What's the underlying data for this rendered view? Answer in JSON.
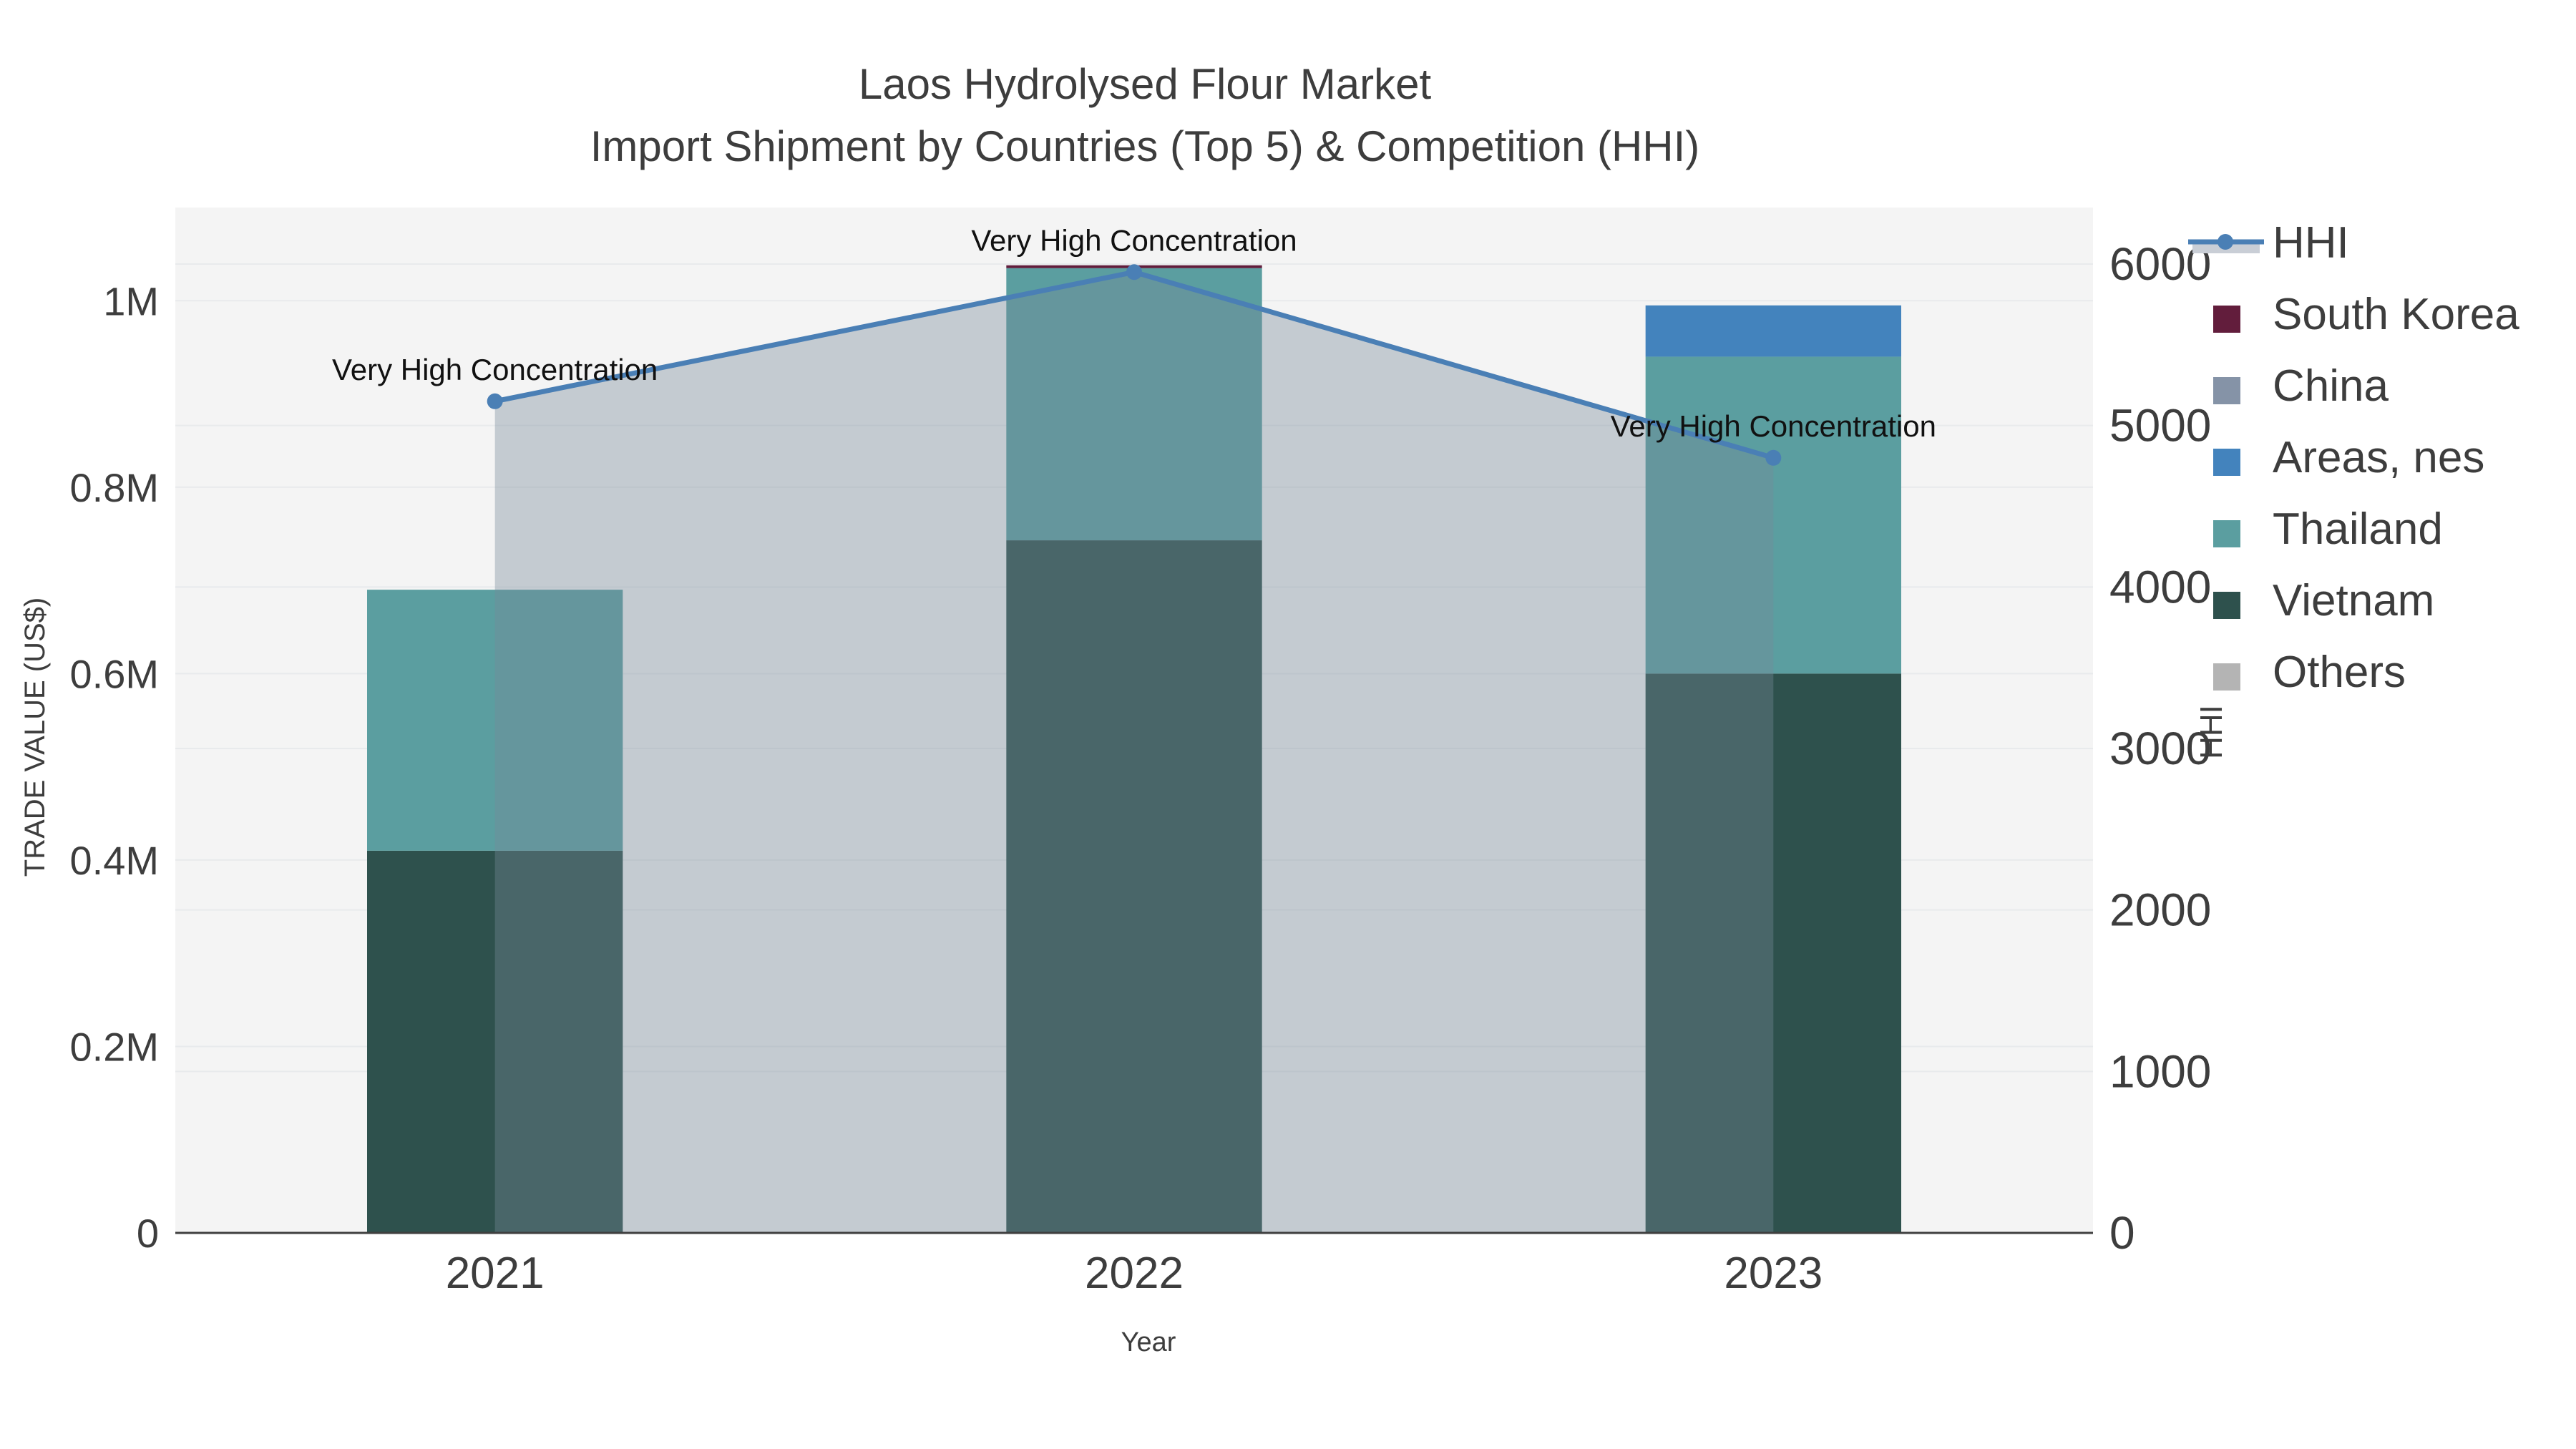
{
  "chart_data": {
    "type": "bar+line",
    "title": "Laos Hydrolysed Flour Market",
    "subtitle": "Import Shipment by Countries (Top 5) & Competition (HHI)",
    "xlabel": "Year",
    "categories": [
      "2021",
      "2022",
      "2023"
    ],
    "left_axis": {
      "label": "TRADE VALUE (US$)",
      "range": [
        0,
        1100000
      ],
      "tick_values": [
        0,
        200000,
        400000,
        600000,
        800000,
        1000000
      ],
      "tick_labels": [
        "0",
        "0.2M",
        "0.4M",
        "0.6M",
        "0.8M",
        "1M"
      ]
    },
    "right_axis": {
      "label": "HHI",
      "range": [
        0,
        6350
      ],
      "tick_values": [
        0,
        1000,
        2000,
        3000,
        4000,
        5000,
        6000
      ],
      "tick_labels": [
        "0",
        "1000",
        "2000",
        "3000",
        "4000",
        "5000",
        "6000"
      ]
    },
    "series": [
      {
        "name": "South Korea",
        "color": "#621d3c",
        "values": [
          0,
          3000,
          0
        ]
      },
      {
        "name": "China",
        "color": "#8593a7",
        "values": [
          0,
          0,
          0
        ]
      },
      {
        "name": "Areas, nes",
        "color": "#4383bd",
        "values": [
          0,
          0,
          55000
        ]
      },
      {
        "name": "Thailand",
        "color": "#5b9ea0",
        "values": [
          280000,
          292000,
          340000
        ]
      },
      {
        "name": "Vietnam",
        "color": "#2e514d",
        "values": [
          410000,
          743000,
          600000
        ]
      },
      {
        "name": "Others",
        "color": "#b4b4b4",
        "values": [
          0,
          0,
          0
        ]
      }
    ],
    "stack_order": [
      "Vietnam",
      "Thailand",
      "Areas, nes",
      "China",
      "South Korea",
      "Others"
    ],
    "hhi": {
      "name": "HHI",
      "values": [
        5150,
        5950,
        4800
      ],
      "line_color": "#4a7fb5",
      "marker_color": "#4a7fb5",
      "fill_color": "rgba(119,136,153,0.38)",
      "legend_band_color": "#c9ced6"
    },
    "annotations": [
      "Very High Concentration",
      "Very High Concentration",
      "Very High Concentration"
    ],
    "legend_entries": [
      "HHI",
      "South Korea",
      "China",
      "Areas, nes",
      "Thailand",
      "Vietnam",
      "Others"
    ],
    "colors": {
      "background": "#ffffff",
      "plot_background": "#f4f4f4",
      "grid": "#e8eaec",
      "axis_line": "#3f3f3f",
      "text": "#3d3d3d"
    },
    "layout_hints": {
      "grid": "on",
      "legend_position": "right",
      "bar_width_fraction": 0.4
    }
  }
}
